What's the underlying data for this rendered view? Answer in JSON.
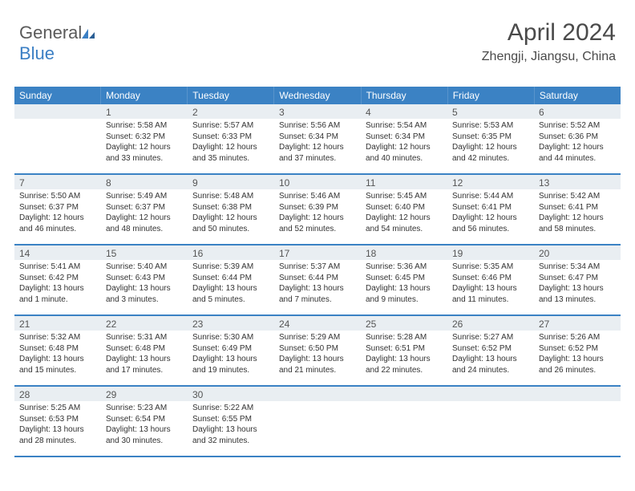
{
  "logo": {
    "text1": "General",
    "text2": "Blue"
  },
  "header": {
    "month_title": "April 2024",
    "location": "Zhengji, Jiangsu, China"
  },
  "colors": {
    "header_bar": "#3b82c4",
    "daynum_bg": "#e9eef2",
    "week_border": "#3b82c4",
    "text": "#333333",
    "title_text": "#4a4a4a"
  },
  "typography": {
    "title_fontsize": 30,
    "location_fontsize": 16,
    "weekday_fontsize": 12,
    "daynum_fontsize": 12,
    "body_fontsize": 10
  },
  "weekdays": [
    "Sunday",
    "Monday",
    "Tuesday",
    "Wednesday",
    "Thursday",
    "Friday",
    "Saturday"
  ],
  "weeks": [
    [
      {
        "n": "",
        "l1": "",
        "l2": "",
        "l3": "",
        "l4": ""
      },
      {
        "n": "1",
        "l1": "Sunrise: 5:58 AM",
        "l2": "Sunset: 6:32 PM",
        "l3": "Daylight: 12 hours",
        "l4": "and 33 minutes."
      },
      {
        "n": "2",
        "l1": "Sunrise: 5:57 AM",
        "l2": "Sunset: 6:33 PM",
        "l3": "Daylight: 12 hours",
        "l4": "and 35 minutes."
      },
      {
        "n": "3",
        "l1": "Sunrise: 5:56 AM",
        "l2": "Sunset: 6:34 PM",
        "l3": "Daylight: 12 hours",
        "l4": "and 37 minutes."
      },
      {
        "n": "4",
        "l1": "Sunrise: 5:54 AM",
        "l2": "Sunset: 6:34 PM",
        "l3": "Daylight: 12 hours",
        "l4": "and 40 minutes."
      },
      {
        "n": "5",
        "l1": "Sunrise: 5:53 AM",
        "l2": "Sunset: 6:35 PM",
        "l3": "Daylight: 12 hours",
        "l4": "and 42 minutes."
      },
      {
        "n": "6",
        "l1": "Sunrise: 5:52 AM",
        "l2": "Sunset: 6:36 PM",
        "l3": "Daylight: 12 hours",
        "l4": "and 44 minutes."
      }
    ],
    [
      {
        "n": "7",
        "l1": "Sunrise: 5:50 AM",
        "l2": "Sunset: 6:37 PM",
        "l3": "Daylight: 12 hours",
        "l4": "and 46 minutes."
      },
      {
        "n": "8",
        "l1": "Sunrise: 5:49 AM",
        "l2": "Sunset: 6:37 PM",
        "l3": "Daylight: 12 hours",
        "l4": "and 48 minutes."
      },
      {
        "n": "9",
        "l1": "Sunrise: 5:48 AM",
        "l2": "Sunset: 6:38 PM",
        "l3": "Daylight: 12 hours",
        "l4": "and 50 minutes."
      },
      {
        "n": "10",
        "l1": "Sunrise: 5:46 AM",
        "l2": "Sunset: 6:39 PM",
        "l3": "Daylight: 12 hours",
        "l4": "and 52 minutes."
      },
      {
        "n": "11",
        "l1": "Sunrise: 5:45 AM",
        "l2": "Sunset: 6:40 PM",
        "l3": "Daylight: 12 hours",
        "l4": "and 54 minutes."
      },
      {
        "n": "12",
        "l1": "Sunrise: 5:44 AM",
        "l2": "Sunset: 6:41 PM",
        "l3": "Daylight: 12 hours",
        "l4": "and 56 minutes."
      },
      {
        "n": "13",
        "l1": "Sunrise: 5:42 AM",
        "l2": "Sunset: 6:41 PM",
        "l3": "Daylight: 12 hours",
        "l4": "and 58 minutes."
      }
    ],
    [
      {
        "n": "14",
        "l1": "Sunrise: 5:41 AM",
        "l2": "Sunset: 6:42 PM",
        "l3": "Daylight: 13 hours",
        "l4": "and 1 minute."
      },
      {
        "n": "15",
        "l1": "Sunrise: 5:40 AM",
        "l2": "Sunset: 6:43 PM",
        "l3": "Daylight: 13 hours",
        "l4": "and 3 minutes."
      },
      {
        "n": "16",
        "l1": "Sunrise: 5:39 AM",
        "l2": "Sunset: 6:44 PM",
        "l3": "Daylight: 13 hours",
        "l4": "and 5 minutes."
      },
      {
        "n": "17",
        "l1": "Sunrise: 5:37 AM",
        "l2": "Sunset: 6:44 PM",
        "l3": "Daylight: 13 hours",
        "l4": "and 7 minutes."
      },
      {
        "n": "18",
        "l1": "Sunrise: 5:36 AM",
        "l2": "Sunset: 6:45 PM",
        "l3": "Daylight: 13 hours",
        "l4": "and 9 minutes."
      },
      {
        "n": "19",
        "l1": "Sunrise: 5:35 AM",
        "l2": "Sunset: 6:46 PM",
        "l3": "Daylight: 13 hours",
        "l4": "and 11 minutes."
      },
      {
        "n": "20",
        "l1": "Sunrise: 5:34 AM",
        "l2": "Sunset: 6:47 PM",
        "l3": "Daylight: 13 hours",
        "l4": "and 13 minutes."
      }
    ],
    [
      {
        "n": "21",
        "l1": "Sunrise: 5:32 AM",
        "l2": "Sunset: 6:48 PM",
        "l3": "Daylight: 13 hours",
        "l4": "and 15 minutes."
      },
      {
        "n": "22",
        "l1": "Sunrise: 5:31 AM",
        "l2": "Sunset: 6:48 PM",
        "l3": "Daylight: 13 hours",
        "l4": "and 17 minutes."
      },
      {
        "n": "23",
        "l1": "Sunrise: 5:30 AM",
        "l2": "Sunset: 6:49 PM",
        "l3": "Daylight: 13 hours",
        "l4": "and 19 minutes."
      },
      {
        "n": "24",
        "l1": "Sunrise: 5:29 AM",
        "l2": "Sunset: 6:50 PM",
        "l3": "Daylight: 13 hours",
        "l4": "and 21 minutes."
      },
      {
        "n": "25",
        "l1": "Sunrise: 5:28 AM",
        "l2": "Sunset: 6:51 PM",
        "l3": "Daylight: 13 hours",
        "l4": "and 22 minutes."
      },
      {
        "n": "26",
        "l1": "Sunrise: 5:27 AM",
        "l2": "Sunset: 6:52 PM",
        "l3": "Daylight: 13 hours",
        "l4": "and 24 minutes."
      },
      {
        "n": "27",
        "l1": "Sunrise: 5:26 AM",
        "l2": "Sunset: 6:52 PM",
        "l3": "Daylight: 13 hours",
        "l4": "and 26 minutes."
      }
    ],
    [
      {
        "n": "28",
        "l1": "Sunrise: 5:25 AM",
        "l2": "Sunset: 6:53 PM",
        "l3": "Daylight: 13 hours",
        "l4": "and 28 minutes."
      },
      {
        "n": "29",
        "l1": "Sunrise: 5:23 AM",
        "l2": "Sunset: 6:54 PM",
        "l3": "Daylight: 13 hours",
        "l4": "and 30 minutes."
      },
      {
        "n": "30",
        "l1": "Sunrise: 5:22 AM",
        "l2": "Sunset: 6:55 PM",
        "l3": "Daylight: 13 hours",
        "l4": "and 32 minutes."
      },
      {
        "n": "",
        "l1": "",
        "l2": "",
        "l3": "",
        "l4": ""
      },
      {
        "n": "",
        "l1": "",
        "l2": "",
        "l3": "",
        "l4": ""
      },
      {
        "n": "",
        "l1": "",
        "l2": "",
        "l3": "",
        "l4": ""
      },
      {
        "n": "",
        "l1": "",
        "l2": "",
        "l3": "",
        "l4": ""
      }
    ]
  ]
}
